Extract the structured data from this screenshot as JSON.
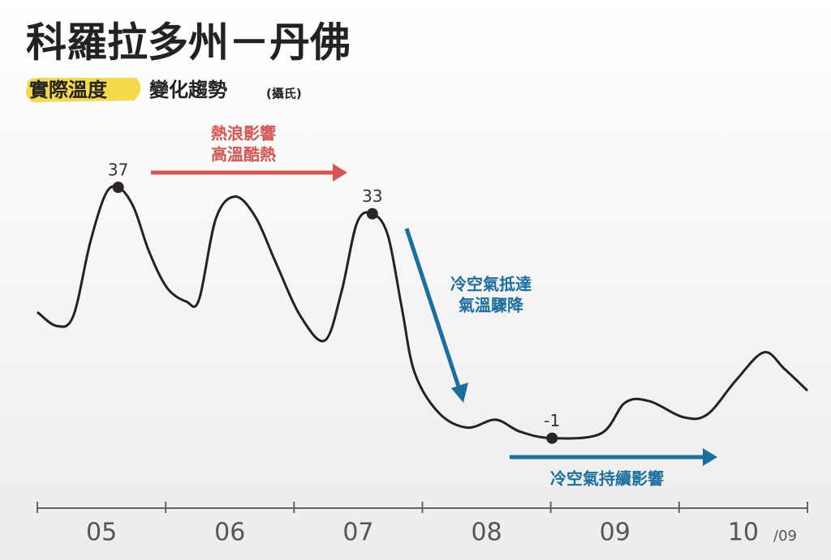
{
  "chart_data": {
    "type": "line",
    "title": "科羅拉多州－丹佛",
    "subtitle_highlight": "實際溫度",
    "subtitle": "變化趨勢",
    "subtitle_unit": "(攝氏)",
    "x_unit": "/09",
    "day_labels": [
      "05",
      "06",
      "07",
      "08",
      "09",
      "10"
    ],
    "x": [
      5.0,
      5.15,
      5.28,
      5.41,
      5.53,
      5.63,
      5.75,
      5.87,
      6.01,
      6.16,
      6.26,
      6.39,
      6.54,
      6.7,
      6.86,
      7.05,
      7.24,
      7.37,
      7.49,
      7.61,
      7.73,
      7.84,
      7.94,
      8.13,
      8.35,
      8.57,
      8.76,
      9.01,
      9.39,
      9.58,
      9.77,
      10.03,
      10.22,
      10.44,
      10.66,
      10.82,
      11.0
    ],
    "series": [
      {
        "color": "#222222",
        "values": [
          18.1,
          16.0,
          17.5,
          28.5,
          35.9,
          37,
          34.0,
          27.3,
          21.8,
          19.7,
          20.0,
          32.2,
          35.6,
          32.5,
          25.5,
          17.5,
          13.8,
          21.2,
          31.6,
          33,
          29.8,
          18.7,
          8.9,
          2.8,
          0.6,
          1.8,
          0.0,
          -1,
          -0.3,
          4.4,
          4.6,
          2.2,
          2.6,
          7.7,
          12.0,
          9.5,
          6.2
        ]
      }
    ],
    "labeled_points": [
      5,
      19,
      27
    ],
    "xlim": [
      5,
      11
    ],
    "xticks": [
      5,
      6,
      7,
      8,
      9,
      10,
      11
    ],
    "ylim": [
      -10,
      45
    ],
    "annotations": [
      {
        "lines": [
          "熱浪影響",
          "高溫酷熱"
        ],
        "color": "#d9534f"
      },
      {
        "lines": [
          "冷空氣抵達",
          "氣溫驟降"
        ],
        "color": "#1a6fa0"
      },
      {
        "lines": [
          "冷空氣持續影響"
        ],
        "color": "#1a6fa0"
      }
    ]
  }
}
